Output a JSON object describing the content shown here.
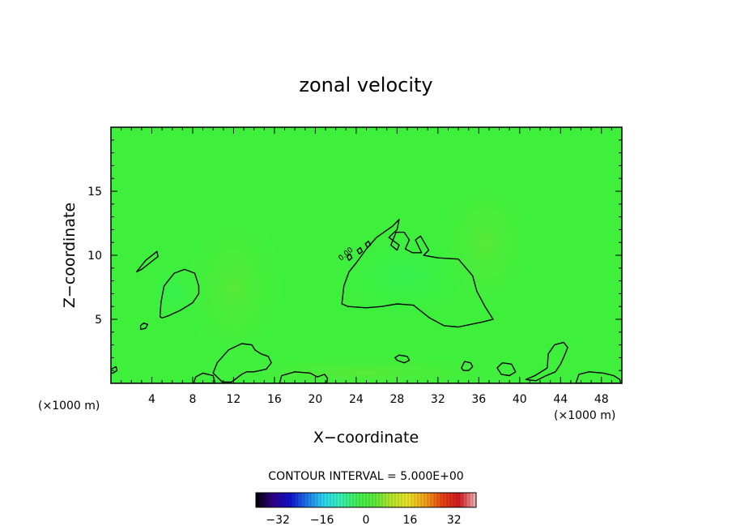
{
  "chart_data": {
    "type": "heatmap",
    "title": "zonal velocity",
    "xlabel": "X−coordinate",
    "ylabel": "Z−coordinate",
    "x_unit_left": "(×1000 m)",
    "x_unit_right": "(×1000 m)",
    "xlim": [
      0,
      50
    ],
    "ylim": [
      0,
      20
    ],
    "x_ticks": [
      4,
      8,
      12,
      16,
      20,
      24,
      28,
      32,
      36,
      40,
      44,
      48
    ],
    "y_ticks": [
      5,
      10,
      15
    ],
    "field_background_color": "#3ef03c",
    "contour_line_color": "#000000",
    "contour_level_label": "0.00",
    "contours_zero_level": [
      {
        "name": "left-lobe",
        "points": [
          [
            4.8,
            5.2
          ],
          [
            4.9,
            6.3
          ],
          [
            5.2,
            7.6
          ],
          [
            6.2,
            8.6
          ],
          [
            7.2,
            8.9
          ],
          [
            8.2,
            8.6
          ],
          [
            8.6,
            7.6
          ],
          [
            8.6,
            7.0
          ],
          [
            8.0,
            6.3
          ],
          [
            6.8,
            5.7
          ],
          [
            5.7,
            5.3
          ],
          [
            5.0,
            5.1
          ]
        ]
      },
      {
        "name": "small-left-upper",
        "points": [
          [
            2.5,
            8.7
          ],
          [
            3.4,
            9.6
          ],
          [
            4.5,
            10.3
          ],
          [
            4.6,
            9.9
          ],
          [
            3.8,
            9.4
          ],
          [
            3.0,
            8.9
          ]
        ]
      },
      {
        "name": "small-left-lower",
        "points": [
          [
            2.9,
            4.2
          ],
          [
            3.4,
            4.3
          ],
          [
            3.6,
            4.6
          ],
          [
            3.2,
            4.7
          ],
          [
            2.9,
            4.5
          ]
        ]
      },
      {
        "name": "central-blob",
        "points": [
          [
            22.6,
            6.2
          ],
          [
            22.8,
            7.6
          ],
          [
            23.3,
            8.7
          ],
          [
            24.0,
            9.4
          ],
          [
            25.0,
            10.5
          ],
          [
            26.0,
            11.4
          ],
          [
            27.6,
            12.3
          ],
          [
            28.2,
            12.8
          ],
          [
            28.0,
            12.0
          ],
          [
            27.2,
            11.4
          ],
          [
            28.2,
            10.8
          ],
          [
            28.0,
            10.4
          ],
          [
            27.4,
            10.8
          ],
          [
            27.9,
            11.8
          ],
          [
            28.7,
            11.8
          ],
          [
            29.2,
            11.2
          ],
          [
            28.8,
            10.5
          ],
          [
            29.5,
            10.2
          ],
          [
            30.4,
            10.2
          ],
          [
            29.8,
            11.2
          ],
          [
            30.3,
            11.5
          ],
          [
            31.1,
            10.4
          ],
          [
            30.6,
            10.0
          ],
          [
            32.0,
            9.8
          ],
          [
            34.0,
            9.7
          ],
          [
            35.4,
            8.4
          ],
          [
            35.8,
            7.2
          ],
          [
            36.6,
            6.0
          ],
          [
            37.4,
            5.0
          ],
          [
            36.4,
            4.8
          ],
          [
            35.2,
            4.6
          ],
          [
            34.0,
            4.4
          ],
          [
            32.6,
            4.5
          ],
          [
            31.2,
            5.1
          ],
          [
            29.6,
            6.1
          ],
          [
            28.0,
            6.2
          ],
          [
            26.5,
            6.0
          ],
          [
            25.0,
            5.9
          ],
          [
            23.2,
            6.0
          ]
        ]
      },
      {
        "name": "central-eye-a",
        "points": [
          [
            23.1,
            9.9
          ],
          [
            23.4,
            10.1
          ],
          [
            23.6,
            9.8
          ],
          [
            23.3,
            9.6
          ]
        ]
      },
      {
        "name": "central-eye-b",
        "points": [
          [
            24.1,
            10.4
          ],
          [
            24.4,
            10.6
          ],
          [
            24.6,
            10.3
          ],
          [
            24.3,
            10.1
          ]
        ]
      },
      {
        "name": "central-eye-c",
        "points": [
          [
            24.9,
            10.9
          ],
          [
            25.2,
            11.1
          ],
          [
            25.4,
            10.8
          ],
          [
            25.1,
            10.6
          ]
        ]
      },
      {
        "name": "bottom-left-1",
        "points": [
          [
            10.0,
            0.8
          ],
          [
            10.4,
            1.6
          ],
          [
            11.5,
            2.6
          ],
          [
            12.8,
            3.1
          ],
          [
            13.8,
            3.0
          ],
          [
            14.1,
            2.6
          ],
          [
            14.7,
            2.3
          ],
          [
            15.4,
            2.1
          ],
          [
            15.7,
            1.6
          ],
          [
            15.2,
            1.1
          ],
          [
            14.0,
            0.9
          ],
          [
            13.3,
            0.9
          ],
          [
            12.8,
            0.7
          ],
          [
            12.3,
            0.4
          ],
          [
            11.8,
            0.1
          ],
          [
            10.9,
            0.1
          ]
        ]
      },
      {
        "name": "bottom-left-2",
        "points": [
          [
            8.1,
            0.0
          ],
          [
            8.3,
            0.5
          ],
          [
            9.0,
            0.8
          ],
          [
            10.0,
            0.6
          ],
          [
            10.2,
            0.0
          ]
        ]
      },
      {
        "name": "bottom-mid-1",
        "points": [
          [
            16.5,
            0.0
          ],
          [
            16.7,
            0.6
          ],
          [
            18.0,
            0.9
          ],
          [
            19.5,
            0.8
          ],
          [
            20.2,
            0.5
          ],
          [
            20.9,
            0.7
          ],
          [
            21.2,
            0.4
          ],
          [
            21.1,
            0.0
          ]
        ]
      },
      {
        "name": "bottom-mid-2",
        "points": [
          [
            27.8,
            2.0
          ],
          [
            28.2,
            2.2
          ],
          [
            29.0,
            2.1
          ],
          [
            29.2,
            1.8
          ],
          [
            28.7,
            1.6
          ],
          [
            28.0,
            1.8
          ]
        ]
      },
      {
        "name": "bottom-mid-3",
        "points": [
          [
            34.3,
            1.2
          ],
          [
            34.6,
            1.7
          ],
          [
            35.2,
            1.6
          ],
          [
            35.4,
            1.3
          ],
          [
            35.0,
            1.0
          ],
          [
            34.5,
            1.0
          ]
        ]
      },
      {
        "name": "bottom-right-1",
        "points": [
          [
            37.8,
            1.2
          ],
          [
            38.3,
            1.6
          ],
          [
            39.2,
            1.5
          ],
          [
            39.6,
            0.9
          ],
          [
            39.0,
            0.6
          ],
          [
            38.2,
            0.7
          ]
        ]
      },
      {
        "name": "bottom-right-2",
        "points": [
          [
            40.6,
            0.3
          ],
          [
            41.5,
            0.6
          ],
          [
            42.7,
            1.2
          ],
          [
            42.8,
            2.3
          ],
          [
            43.4,
            3.0
          ],
          [
            44.3,
            3.2
          ],
          [
            44.7,
            2.8
          ],
          [
            44.4,
            2.2
          ],
          [
            44.0,
            1.5
          ],
          [
            43.5,
            0.9
          ],
          [
            42.6,
            0.6
          ],
          [
            41.6,
            0.2
          ]
        ]
      },
      {
        "name": "bottom-right-3",
        "points": [
          [
            45.5,
            0.0
          ],
          [
            45.8,
            0.7
          ],
          [
            46.8,
            0.9
          ],
          [
            48.2,
            0.8
          ],
          [
            49.2,
            0.6
          ],
          [
            49.8,
            0.3
          ],
          [
            49.9,
            0.0
          ]
        ]
      },
      {
        "name": "left-edge",
        "points": [
          [
            0.0,
            1.1
          ],
          [
            0.5,
            1.3
          ],
          [
            0.6,
            1.0
          ],
          [
            0.2,
            0.8
          ],
          [
            0.0,
            0.8
          ]
        ]
      }
    ],
    "contour_interval_label": "CONTOUR INTERVAL = 5.000E+00",
    "contour_interval": 5.0,
    "colorbar": {
      "min": -40,
      "max": 40,
      "tick_labels": [
        "−32",
        "−16",
        "0",
        "16",
        "32"
      ],
      "tick_values": [
        -32,
        -16,
        0,
        16,
        32
      ],
      "stops": [
        "#000000",
        "#30008a",
        "#1010c8",
        "#1e74e8",
        "#2ad6f0",
        "#38f0b4",
        "#40f050",
        "#5ae83a",
        "#b4e62e",
        "#ece028",
        "#f0a018",
        "#e64214",
        "#d01a20",
        "#f0b4b4"
      ]
    }
  }
}
